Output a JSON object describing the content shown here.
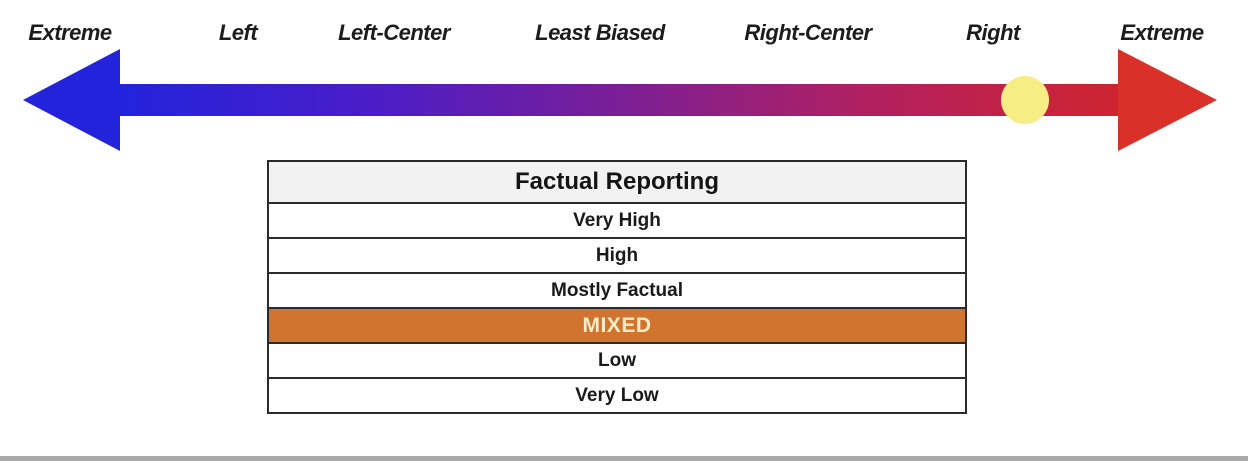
{
  "bias_scale": {
    "labels": [
      "Extreme",
      "Left",
      "Left-Center",
      "Least Biased",
      "Right-Center",
      "Right",
      "Extreme"
    ],
    "marker": {
      "nearest_label": "Right",
      "color": "#F6EE85"
    }
  },
  "factual_reporting": {
    "header": "Factual Reporting",
    "levels": [
      "Very High",
      "High",
      "Mostly Factual",
      "MIXED",
      "Low",
      "Very Low"
    ],
    "selected_level": "MIXED"
  },
  "colors": {
    "arrow-left": "#2323DC",
    "arrow-q1": "#4A1DC8",
    "arrow-mid": "#7A1F96",
    "arrow-q3": "#B22060",
    "arrow-right": "#CE2430",
    "arrowhead-right": "#D9302A",
    "marker": "#F6EE85",
    "header-bg": "#F2F2F2",
    "border": "#2B2B2B",
    "mixed-bg": "#D1742F",
    "mixed-text": "#F8EDC7",
    "divider": "#A9A9A9"
  }
}
